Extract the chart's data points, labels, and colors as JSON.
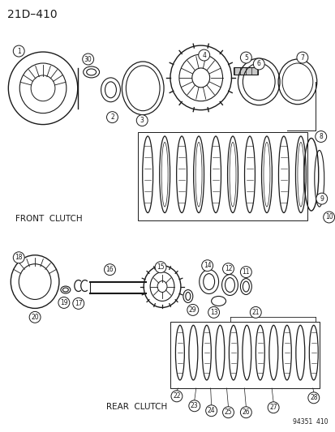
{
  "title": "21D–410",
  "watermark": "94351  410",
  "front_clutch_label": "FRONT  CLUTCH",
  "rear_clutch_label": "REAR  CLUTCH",
  "bg_color": "#ffffff",
  "line_color": "#1a1a1a",
  "gray_fill": "#c8c8c8",
  "dark_fill": "#5a5a5a"
}
